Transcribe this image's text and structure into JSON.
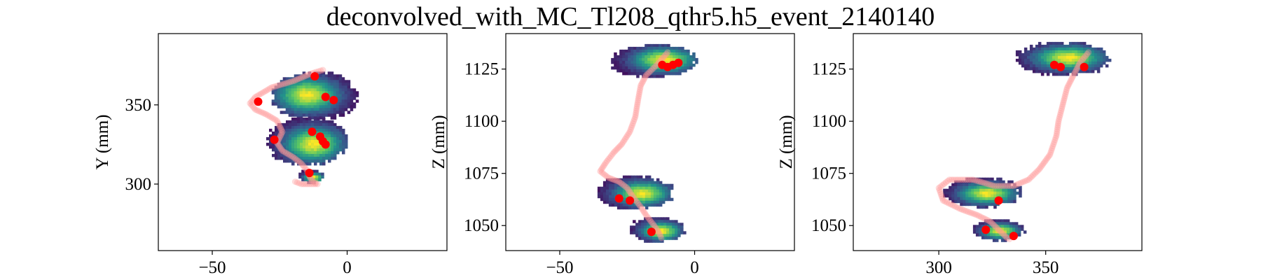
{
  "chart_data": {
    "title": "deconvolved_with_MC_Tl208_qthr5.h5_event_2140140",
    "type": "heatmap",
    "colormap": [
      "#440154",
      "#3b528b",
      "#21918c",
      "#5ec962",
      "#fde725"
    ],
    "true_track_color": "#ff9999",
    "marker_color": "#ff0000",
    "panels": [
      {
        "type": "heatmap",
        "xlim": [
          -70,
          37
        ],
        "ylim": [
          258,
          395
        ],
        "xticks": [
          -50,
          0
        ],
        "yticks": [
          300,
          350
        ],
        "xlabel": "",
        "ylabel": "Y (mm)",
        "blobs": [
          {
            "cx": -12,
            "cy": 356,
            "rx": 16,
            "ry": 15,
            "peak": [
              -15,
              357
            ]
          },
          {
            "cx": -15,
            "cy": 327,
            "rx": 15,
            "ry": 15,
            "peak": [
              -13,
              326
            ]
          },
          {
            "cx": -13,
            "cy": 305,
            "rx": 5,
            "ry": 4,
            "peak": [
              -13,
              305
            ]
          }
        ],
        "track": [
          [
            -9,
            372
          ],
          [
            -13,
            370
          ],
          [
            -20,
            365
          ],
          [
            -28,
            361
          ],
          [
            -34,
            355
          ],
          [
            -36,
            351
          ],
          [
            -34,
            347
          ],
          [
            -30,
            344
          ],
          [
            -26,
            340
          ],
          [
            -24,
            333
          ],
          [
            -26,
            326
          ],
          [
            -24,
            321
          ],
          [
            -20,
            317
          ],
          [
            -17,
            313
          ],
          [
            -15,
            309
          ],
          [
            -14,
            305
          ],
          [
            -13,
            302
          ],
          [
            -11,
            300
          ],
          [
            -17,
            300
          ],
          [
            -20,
            302
          ]
        ],
        "markers": [
          [
            -33,
            352
          ],
          [
            -12,
            368
          ],
          [
            -8,
            355
          ],
          [
            -5,
            353
          ],
          [
            -27,
            328
          ],
          [
            -13,
            333
          ],
          [
            -10,
            330
          ],
          [
            -8,
            325
          ],
          [
            -9,
            327
          ],
          [
            -14,
            307
          ]
        ]
      },
      {
        "type": "heatmap",
        "xlim": [
          -70,
          37
        ],
        "ylim": [
          1038,
          1142
        ],
        "xticks": [
          -50,
          0
        ],
        "yticks": [
          1050,
          1075,
          1100,
          1125
        ],
        "xlabel": "",
        "ylabel": "Z (mm)",
        "blobs": [
          {
            "cx": -15,
            "cy": 1129,
            "rx": 16,
            "ry": 8,
            "peak": [
              -12,
              1130
            ]
          },
          {
            "cx": -22,
            "cy": 1066,
            "rx": 14,
            "ry": 8,
            "peak": [
              -20,
              1066
            ]
          },
          {
            "cx": -14,
            "cy": 1048,
            "rx": 10,
            "ry": 6,
            "peak": [
              -13,
              1048
            ]
          }
        ],
        "track": [
          [
            -10,
            1133
          ],
          [
            -14,
            1127
          ],
          [
            -18,
            1122
          ],
          [
            -20,
            1117
          ],
          [
            -21,
            1110
          ],
          [
            -22,
            1102
          ],
          [
            -24,
            1095
          ],
          [
            -27,
            1089
          ],
          [
            -30,
            1085
          ],
          [
            -33,
            1080
          ],
          [
            -35,
            1076
          ],
          [
            -32,
            1073
          ],
          [
            -28,
            1071
          ],
          [
            -25,
            1068
          ],
          [
            -23,
            1064
          ],
          [
            -20,
            1059
          ],
          [
            -18,
            1055
          ],
          [
            -15,
            1050
          ],
          [
            -13,
            1046
          ],
          [
            -12,
            1043
          ]
        ],
        "markers": [
          [
            -12,
            1127
          ],
          [
            -10,
            1126
          ],
          [
            -8,
            1127
          ],
          [
            -6,
            1128
          ],
          [
            -28,
            1063
          ],
          [
            -24,
            1062
          ],
          [
            -16,
            1047
          ]
        ]
      },
      {
        "type": "heatmap",
        "xlim": [
          260,
          395
        ],
        "ylim": [
          1038,
          1142
        ],
        "xticks": [
          300,
          350
        ],
        "yticks": [
          1050,
          1075,
          1100,
          1125
        ],
        "xlabel": "",
        "ylabel": "Z (mm)",
        "blobs": [
          {
            "cx": 358,
            "cy": 1130,
            "rx": 22,
            "ry": 8,
            "peak": [
              360,
              1131
            ]
          },
          {
            "cx": 320,
            "cy": 1066,
            "rx": 18,
            "ry": 7,
            "peak": [
              322,
              1066
            ]
          },
          {
            "cx": 328,
            "cy": 1048,
            "rx": 12,
            "ry": 5,
            "peak": [
              328,
              1048
            ]
          }
        ],
        "track": [
          [
            370,
            1133
          ],
          [
            366,
            1128
          ],
          [
            363,
            1122
          ],
          [
            360,
            1116
          ],
          [
            358,
            1108
          ],
          [
            356,
            1100
          ],
          [
            355,
            1093
          ],
          [
            352,
            1084
          ],
          [
            347,
            1077
          ],
          [
            342,
            1072
          ],
          [
            335,
            1069
          ],
          [
            326,
            1069
          ],
          [
            316,
            1072
          ],
          [
            305,
            1072
          ],
          [
            300,
            1068
          ],
          [
            302,
            1062
          ],
          [
            310,
            1058
          ],
          [
            318,
            1055
          ],
          [
            324,
            1052
          ],
          [
            328,
            1048
          ],
          [
            332,
            1044
          ],
          [
            334,
            1043
          ]
        ],
        "markers": [
          [
            354,
            1127
          ],
          [
            357,
            1126
          ],
          [
            368,
            1126
          ],
          [
            328,
            1062
          ],
          [
            322,
            1048
          ],
          [
            335,
            1045
          ]
        ]
      }
    ]
  }
}
